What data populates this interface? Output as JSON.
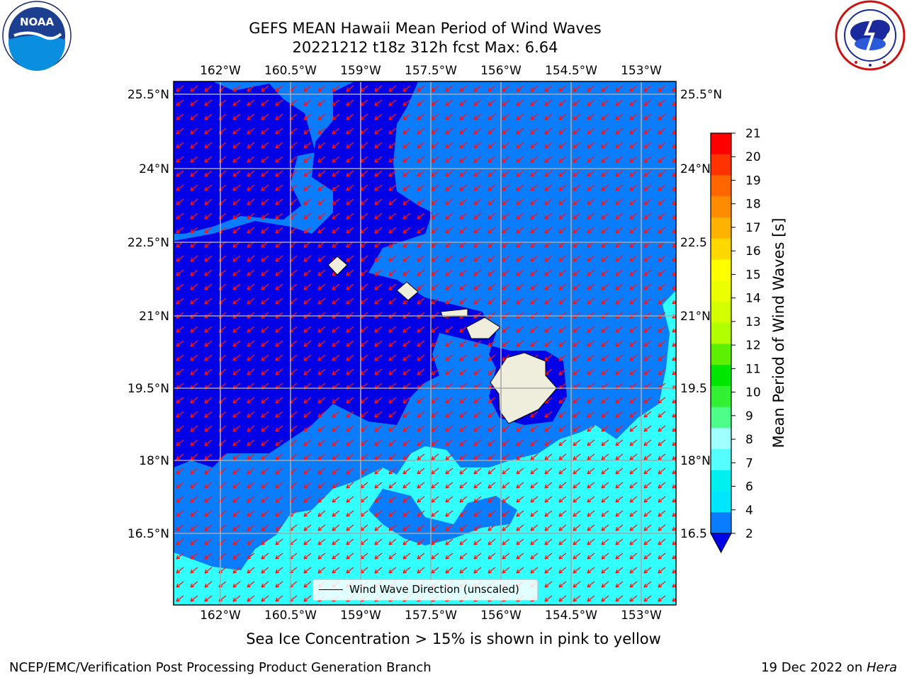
{
  "header": {
    "title_line1": "GEFS MEAN Hawaii Mean Period of Wind Waves",
    "title_line2": "20221212 t18z 312h fcst   Max: 6.64"
  },
  "logos": {
    "left": {
      "icon": "noaa-logo",
      "text": "NOAA",
      "ring_text": "NATIONAL OCEANIC AND ATMOSPHERIC ADMINISTRATION · U.S. DEPARTMENT OF COMMERCE"
    },
    "right": {
      "icon": "nws-logo",
      "ring_text": "NATIONAL WEATHER SERVICE"
    }
  },
  "map": {
    "lon_ticks": [
      "162°W",
      "160.5°W",
      "159°W",
      "157.5°W",
      "156°W",
      "154.5°W",
      "153°W"
    ],
    "lat_ticks": [
      "25.5°N",
      "24°N",
      "22.5°N",
      "21°N",
      "19.5°N",
      "18°N",
      "16.5°N"
    ],
    "right_lat_ticks": [
      "25.5°N",
      "24°N",
      "22.5",
      "21°N",
      "19.5",
      "18°N",
      "16.5"
    ],
    "legend_label": "Wind Wave Direction (unscaled)",
    "colors": {
      "band_below_2": "#0000e6",
      "band_2_4": "#0a7dff",
      "band_4_6": "#32ffff",
      "land": "#efeedd",
      "arrow": "#ff1010",
      "grid": "#a8a8a8"
    }
  },
  "colorbar": {
    "label": "Mean Period of Wind Waves [s]",
    "ticks": [
      "21",
      "20",
      "19",
      "18",
      "17",
      "16",
      "15",
      "14",
      "13",
      "12",
      "11",
      "10",
      "9",
      "8",
      "7",
      "6",
      "4",
      "2"
    ],
    "bands": [
      "#fe0000",
      "#ff3300",
      "#ff6600",
      "#ff8c00",
      "#ffb200",
      "#ffd800",
      "#ffff00",
      "#ecff00",
      "#d4ff00",
      "#b2ff00",
      "#5df000",
      "#00e600",
      "#32f032",
      "#4dff88",
      "#a0ffff",
      "#55ffff",
      "#00f0f0",
      "#00e6ff",
      "#0a7dff"
    ],
    "under_color": "#0000e6"
  },
  "footer": {
    "note": "Sea Ice Concentration > 15% is shown in pink to yellow",
    "left": "NCEP/EMC/Verification Post Processing Product Generation Branch",
    "right_prefix": "19 Dec 2022 on ",
    "right_host": "Hera"
  }
}
